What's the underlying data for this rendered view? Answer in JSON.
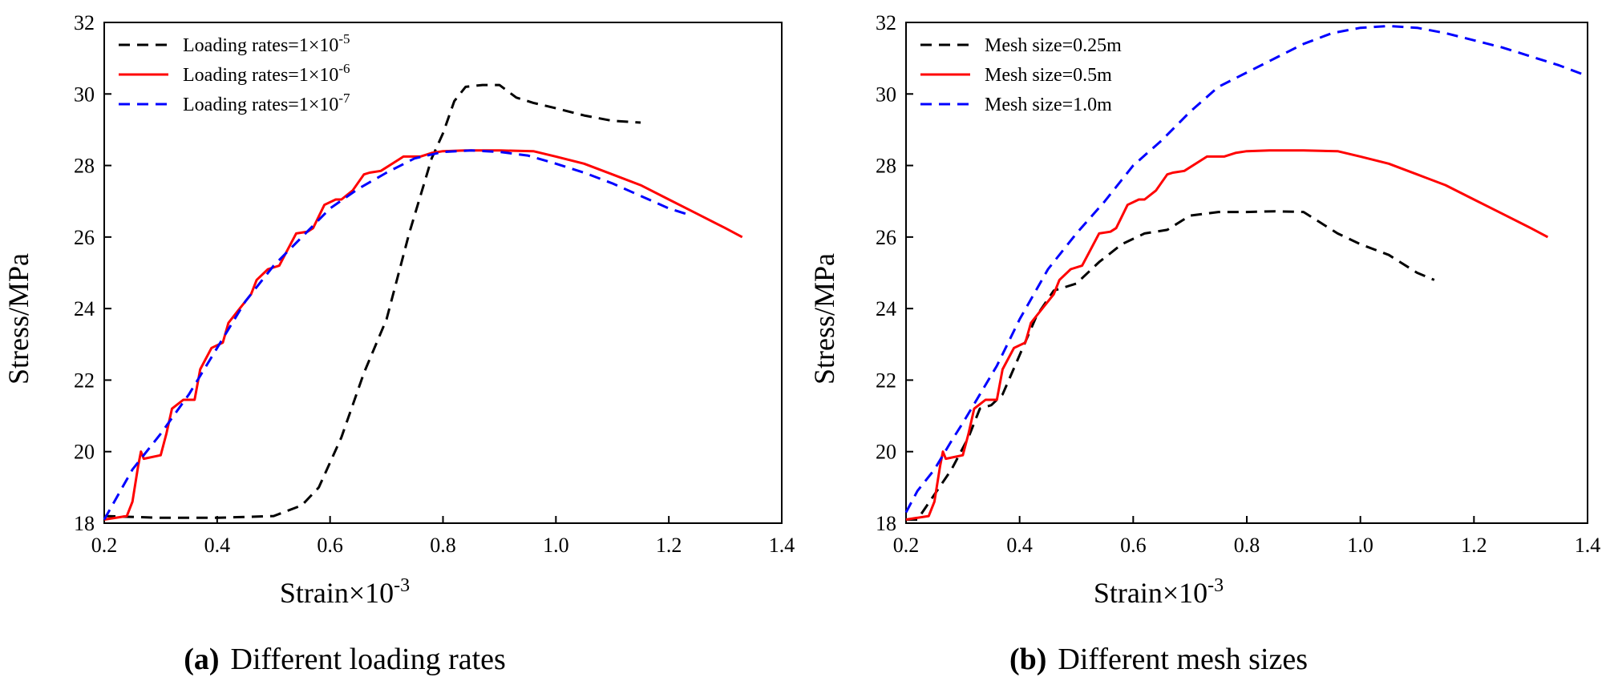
{
  "chart_data": [
    {
      "type": "line",
      "panel_label": "(a)",
      "caption": "Different loading rates",
      "xlabel": "Strain×10",
      "xlabel_sup": "-3",
      "ylabel": "Stress/MPa",
      "xlim": [
        0.2,
        1.4
      ],
      "ylim": [
        18,
        32
      ],
      "xticks": [
        "0.2",
        "0.4",
        "0.6",
        "0.8",
        "1.0",
        "1.2",
        "1.4"
      ],
      "yticks": [
        "18",
        "20",
        "22",
        "24",
        "26",
        "28",
        "30",
        "32"
      ],
      "legend_position": "top-left",
      "series": [
        {
          "label_prefix": "Loading rates=1×10",
          "label_sup": "-5",
          "color": "#000000",
          "dash": "dashed",
          "x": [
            0.2,
            0.3,
            0.4,
            0.5,
            0.55,
            0.58,
            0.62,
            0.66,
            0.7,
            0.74,
            0.78,
            0.8,
            0.82,
            0.84,
            0.87,
            0.9,
            0.93,
            0.96,
            1.0,
            1.05,
            1.1,
            1.15
          ],
          "y": [
            18.2,
            18.15,
            18.15,
            18.2,
            18.5,
            19.0,
            20.4,
            22.2,
            23.7,
            26.1,
            28.2,
            28.9,
            29.8,
            30.2,
            30.25,
            30.25,
            29.9,
            29.75,
            29.6,
            29.4,
            29.25,
            29.2
          ]
        },
        {
          "label_prefix": "Loading rates=1×10",
          "label_sup": "-6",
          "color": "#ff0000",
          "dash": "solid",
          "x": [
            0.2,
            0.24,
            0.25,
            0.26,
            0.265,
            0.27,
            0.3,
            0.31,
            0.32,
            0.34,
            0.36,
            0.37,
            0.39,
            0.41,
            0.42,
            0.44,
            0.46,
            0.47,
            0.49,
            0.51,
            0.52,
            0.54,
            0.56,
            0.57,
            0.59,
            0.61,
            0.62,
            0.64,
            0.66,
            0.67,
            0.69,
            0.72,
            0.73,
            0.76,
            0.78,
            0.8,
            0.84,
            0.9,
            0.96,
            1.0,
            1.05,
            1.1,
            1.15,
            1.2,
            1.25,
            1.3,
            1.33
          ],
          "y": [
            18.1,
            18.2,
            18.6,
            19.6,
            20.0,
            19.8,
            19.9,
            20.5,
            21.2,
            21.45,
            21.45,
            22.3,
            22.9,
            23.05,
            23.6,
            24.0,
            24.4,
            24.8,
            25.1,
            25.2,
            25.5,
            26.1,
            26.15,
            26.25,
            26.9,
            27.05,
            27.05,
            27.3,
            27.75,
            27.8,
            27.85,
            28.15,
            28.25,
            28.25,
            28.35,
            28.4,
            28.42,
            28.42,
            28.4,
            28.25,
            28.05,
            27.75,
            27.45,
            27.05,
            26.65,
            26.25,
            26.0
          ]
        },
        {
          "label_prefix": "Loading rates=1×10",
          "label_sup": "-7",
          "color": "#0000ff",
          "dash": "dashed",
          "x": [
            0.2,
            0.25,
            0.3,
            0.35,
            0.4,
            0.45,
            0.5,
            0.55,
            0.6,
            0.65,
            0.7,
            0.75,
            0.8,
            0.85,
            0.9,
            0.95,
            1.0,
            1.05,
            1.1,
            1.15,
            1.2,
            1.23
          ],
          "y": [
            18.1,
            19.5,
            20.5,
            21.6,
            22.9,
            24.2,
            25.2,
            26.0,
            26.8,
            27.35,
            27.8,
            28.2,
            28.38,
            28.42,
            28.38,
            28.28,
            28.05,
            27.8,
            27.5,
            27.15,
            26.8,
            26.65
          ]
        }
      ]
    },
    {
      "type": "line",
      "panel_label": "(b)",
      "caption": "Different mesh sizes",
      "xlabel": "Strain×10",
      "xlabel_sup": "-3",
      "ylabel": "Stress/MPa",
      "xlim": [
        0.2,
        1.4
      ],
      "ylim": [
        18,
        32
      ],
      "xticks": [
        "0.2",
        "0.4",
        "0.6",
        "0.8",
        "1.0",
        "1.2",
        "1.4"
      ],
      "yticks": [
        "18",
        "20",
        "22",
        "24",
        "26",
        "28",
        "30",
        "32"
      ],
      "legend_position": "top-left",
      "series": [
        {
          "label_prefix": "Mesh size=0.25m",
          "label_sup": "",
          "color": "#000000",
          "dash": "dashed",
          "x": [
            0.2,
            0.22,
            0.25,
            0.28,
            0.31,
            0.33,
            0.35,
            0.37,
            0.4,
            0.43,
            0.46,
            0.5,
            0.54,
            0.58,
            0.62,
            0.66,
            0.7,
            0.75,
            0.8,
            0.85,
            0.9,
            0.93,
            0.96,
            1.0,
            1.05,
            1.1,
            1.13
          ],
          "y": [
            18.1,
            18.1,
            18.8,
            19.5,
            20.4,
            21.2,
            21.3,
            21.6,
            22.7,
            23.8,
            24.5,
            24.7,
            25.3,
            25.8,
            26.1,
            26.2,
            26.6,
            26.7,
            26.7,
            26.72,
            26.7,
            26.4,
            26.1,
            25.8,
            25.5,
            25.0,
            24.8
          ]
        },
        {
          "label_prefix": "Mesh size=0.5m",
          "label_sup": "",
          "color": "#ff0000",
          "dash": "solid",
          "x": [
            0.2,
            0.24,
            0.25,
            0.26,
            0.265,
            0.27,
            0.3,
            0.31,
            0.32,
            0.34,
            0.36,
            0.37,
            0.39,
            0.41,
            0.42,
            0.44,
            0.46,
            0.47,
            0.49,
            0.51,
            0.52,
            0.54,
            0.56,
            0.57,
            0.59,
            0.61,
            0.62,
            0.64,
            0.66,
            0.67,
            0.69,
            0.72,
            0.73,
            0.76,
            0.78,
            0.8,
            0.84,
            0.9,
            0.96,
            1.0,
            1.05,
            1.1,
            1.15,
            1.2,
            1.25,
            1.3,
            1.33
          ],
          "y": [
            18.1,
            18.2,
            18.6,
            19.6,
            20.0,
            19.8,
            19.9,
            20.5,
            21.2,
            21.45,
            21.45,
            22.3,
            22.9,
            23.05,
            23.6,
            24.0,
            24.4,
            24.8,
            25.1,
            25.2,
            25.5,
            26.1,
            26.15,
            26.25,
            26.9,
            27.05,
            27.05,
            27.3,
            27.75,
            27.8,
            27.85,
            28.15,
            28.25,
            28.25,
            28.35,
            28.4,
            28.42,
            28.42,
            28.4,
            28.25,
            28.05,
            27.75,
            27.45,
            27.05,
            26.65,
            26.25,
            26.0
          ]
        },
        {
          "label_prefix": "Mesh size=1.0m",
          "label_sup": "",
          "color": "#0000ff",
          "dash": "dashed",
          "x": [
            0.2,
            0.22,
            0.25,
            0.28,
            0.3,
            0.33,
            0.36,
            0.4,
            0.45,
            0.5,
            0.55,
            0.6,
            0.65,
            0.7,
            0.75,
            0.8,
            0.85,
            0.9,
            0.95,
            1.0,
            1.05,
            1.1,
            1.15,
            1.2,
            1.25,
            1.3,
            1.35,
            1.4
          ],
          "y": [
            18.3,
            18.9,
            19.5,
            20.3,
            20.8,
            21.6,
            22.4,
            23.7,
            25.1,
            26.1,
            27.0,
            28.0,
            28.7,
            29.5,
            30.2,
            30.6,
            31.0,
            31.4,
            31.7,
            31.85,
            31.9,
            31.85,
            31.7,
            31.5,
            31.3,
            31.05,
            30.8,
            30.5
          ]
        }
      ]
    }
  ]
}
